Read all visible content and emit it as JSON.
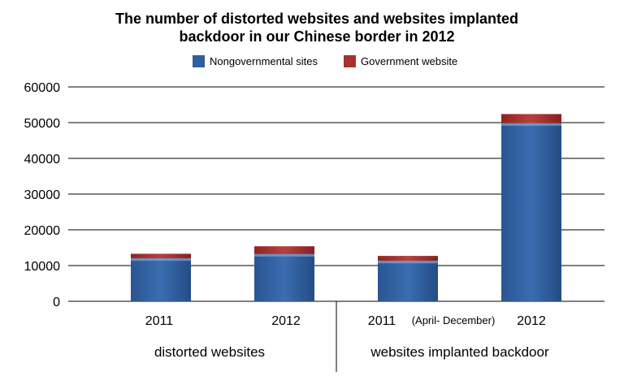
{
  "title": {
    "line1": "The number of distorted websites and websites implanted",
    "line2": "backdoor in our Chinese border in 2012"
  },
  "legend": [
    {
      "label": "Nongovernmental sites",
      "color": "#2f5f9e"
    },
    {
      "label": "Government website",
      "color": "#a8312f"
    }
  ],
  "chart_data": {
    "type": "bar",
    "stacked": true,
    "categories": [
      "2011",
      "2012",
      "2011",
      "2012"
    ],
    "category_notes": [
      "",
      "",
      "(April- December)",
      ""
    ],
    "groups": [
      {
        "label": "distorted websites",
        "categories": [
          0,
          1
        ]
      },
      {
        "label": "websites implanted backdoor",
        "categories": [
          2,
          3
        ]
      }
    ],
    "series": [
      {
        "name": "Nongovernmental sites",
        "values": [
          12000,
          13200,
          11300,
          49800
        ],
        "color": "#2f5f9e"
      },
      {
        "name": "Government website",
        "values": [
          1300,
          2200,
          1400,
          2600
        ],
        "color": "#a8312f"
      }
    ],
    "ylim": [
      0,
      60000
    ],
    "yticks": [
      "0",
      "10000",
      "20000",
      "30000",
      "40000",
      "50000",
      "60000"
    ],
    "grid": true,
    "legend_position": "top"
  }
}
